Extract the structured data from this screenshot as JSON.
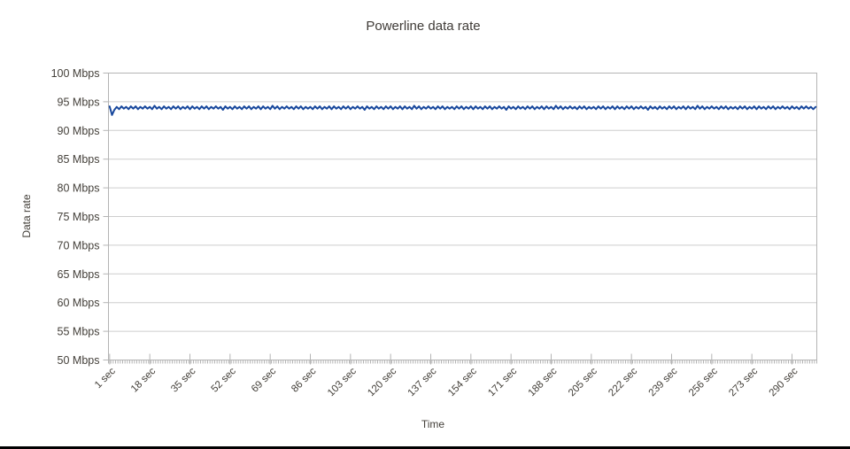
{
  "chart_data": {
    "type": "line",
    "title": "Powerline data rate",
    "xlabel": "Time",
    "ylabel": "Data rate",
    "ylim": [
      50,
      100
    ],
    "y_tick_values": [
      100,
      95,
      90,
      85,
      80,
      75,
      70,
      65,
      60,
      55,
      50
    ],
    "y_tick_labels": [
      "100 Mbps",
      "95 Mbps",
      "90 Mbps",
      "85 Mbps",
      "80 Mbps",
      "75 Mbps",
      "70 Mbps",
      "65 Mbps",
      "60 Mbps",
      "55 Mbps",
      "50 Mbps"
    ],
    "x_tick_values": [
      1,
      18,
      35,
      52,
      69,
      86,
      103,
      120,
      137,
      154,
      171,
      188,
      205,
      222,
      239,
      256,
      273,
      290
    ],
    "x_tick_labels": [
      "1 sec",
      "18 sec",
      "35 sec",
      "52 sec",
      "69 sec",
      "86 sec",
      "103 sec",
      "120 sec",
      "137 sec",
      "154 sec",
      "171 sec",
      "188 sec",
      "205 sec",
      "222 sec",
      "239 sec",
      "256 sec",
      "273 sec",
      "290 sec"
    ],
    "x_minor_tick_step_sec": 1,
    "grid": "horizontal",
    "legend": "none",
    "colors": {
      "series_line": "#17479c",
      "gridline": "#cdcdcd",
      "axis": "#b4b4b4",
      "tick_text": "#44403a"
    },
    "series": [
      {
        "name": "Data rate",
        "unit": "Mbps",
        "x_start_sec": 1,
        "x_step_sec": 1,
        "values": [
          94.2,
          92.7,
          93.6,
          94.1,
          93.7,
          94.2,
          93.8,
          94.1,
          93.7,
          94.2,
          93.8,
          94.2,
          93.7,
          94.1,
          93.8,
          94.2,
          93.8,
          94.1,
          93.7,
          94.3,
          93.8,
          94.1,
          93.7,
          94.2,
          93.8,
          94.1,
          93.7,
          94.2,
          93.8,
          94.2,
          93.7,
          94.1,
          93.8,
          94.2,
          93.7,
          94.2,
          93.8,
          94.1,
          93.7,
          94.2,
          93.8,
          94.2,
          93.7,
          94.1,
          93.8,
          94.2,
          93.8,
          94.1,
          93.6,
          94.2,
          93.8,
          94.1,
          93.7,
          94.2,
          93.8,
          94.1,
          93.7,
          94.2,
          93.8,
          94.2,
          93.7,
          94.1,
          93.8,
          94.2,
          93.7,
          94.2,
          93.8,
          94.1,
          93.7,
          94.3,
          93.8,
          94.2,
          93.7,
          94.1,
          93.8,
          94.2,
          93.8,
          94.1,
          93.7,
          94.2,
          93.8,
          94.2,
          93.7,
          94.1,
          93.8,
          94.1,
          93.7,
          94.2,
          93.8,
          94.2,
          93.7,
          94.1,
          93.8,
          94.2,
          93.7,
          94.2,
          93.8,
          94.1,
          93.7,
          94.2,
          93.8,
          94.2,
          93.7,
          94.1,
          93.8,
          94.2,
          93.8,
          94.1,
          93.6,
          94.2,
          93.8,
          94.1,
          93.7,
          94.2,
          93.8,
          94.1,
          93.7,
          94.2,
          93.8,
          94.2,
          93.7,
          94.1,
          93.8,
          94.2,
          93.7,
          94.2,
          93.8,
          94.1,
          93.7,
          94.3,
          93.8,
          94.2,
          93.7,
          94.1,
          93.8,
          94.2,
          93.8,
          94.1,
          93.7,
          94.2,
          93.8,
          94.2,
          93.7,
          94.1,
          93.8,
          94.1,
          93.7,
          94.2,
          93.8,
          94.2,
          93.7,
          94.1,
          93.8,
          94.2,
          93.7,
          94.2,
          93.8,
          94.1,
          93.7,
          94.2,
          93.8,
          94.2,
          93.7,
          94.1,
          93.8,
          94.2,
          93.8,
          94.1,
          93.6,
          94.2,
          93.8,
          94.1,
          93.7,
          94.2,
          93.8,
          94.1,
          93.7,
          94.2,
          93.8,
          94.2,
          93.7,
          94.1,
          93.8,
          94.2,
          93.7,
          94.2,
          93.8,
          94.1,
          93.7,
          94.3,
          93.8,
          94.2,
          93.7,
          94.1,
          93.8,
          94.2,
          93.8,
          94.1,
          93.7,
          94.2,
          93.8,
          94.2,
          93.7,
          94.1,
          93.8,
          94.1,
          93.7,
          94.2,
          93.8,
          94.2,
          93.7,
          94.1,
          93.8,
          94.2,
          93.7,
          94.2,
          93.8,
          94.1,
          93.7,
          94.2,
          93.8,
          94.2,
          93.7,
          94.1,
          93.8,
          94.2,
          93.8,
          94.1,
          93.6,
          94.2,
          93.8,
          94.1,
          93.7,
          94.2,
          93.8,
          94.1,
          93.7,
          94.2,
          93.8,
          94.2,
          93.7,
          94.1,
          93.8,
          94.2,
          93.7,
          94.2,
          93.8,
          94.1,
          93.7,
          94.3,
          93.8,
          94.2,
          93.7,
          94.1,
          93.8,
          94.2,
          93.8,
          94.1,
          93.7,
          94.2,
          93.8,
          94.2,
          93.7,
          94.1,
          93.8,
          94.1,
          93.7,
          94.2,
          93.8,
          94.2,
          93.7,
          94.1,
          93.8,
          94.2,
          93.7,
          94.2,
          93.8,
          94.1,
          93.7,
          94.2,
          93.8,
          94.2,
          93.7,
          94.1,
          93.8,
          94.2,
          93.8,
          94.1,
          93.7,
          94.2,
          93.8,
          94.1,
          93.7,
          94.2,
          93.8,
          94.2,
          93.8,
          94.1,
          93.7,
          94.1
        ]
      }
    ]
  }
}
